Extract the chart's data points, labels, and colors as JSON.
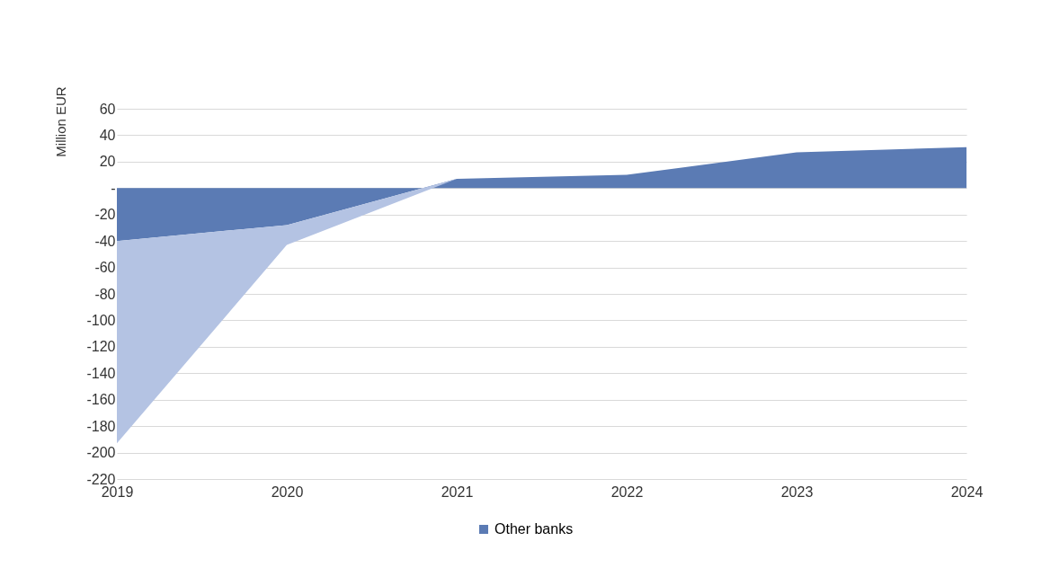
{
  "chart_data": {
    "type": "area",
    "stacked": true,
    "ylabel": "Million EUR",
    "categories": [
      "2019",
      "2020",
      "2021",
      "2022",
      "2023",
      "2024"
    ],
    "series": [
      {
        "name": "Other banks",
        "color": "#5b7bb4",
        "values": [
          -40,
          -28,
          7,
          10,
          27,
          31
        ]
      },
      {
        "color": "#b4c3e3",
        "values": [
          -153,
          -15,
          0,
          0,
          0,
          0
        ]
      }
    ],
    "ylim": [
      -220,
      60
    ],
    "yticks": [
      -220,
      -200,
      -180,
      -160,
      -140,
      -120,
      -100,
      -80,
      -60,
      -40,
      -20,
      {
        "value": 0,
        "label": "-"
      },
      20,
      40,
      60
    ],
    "grid": "y",
    "legend": "bottom"
  }
}
